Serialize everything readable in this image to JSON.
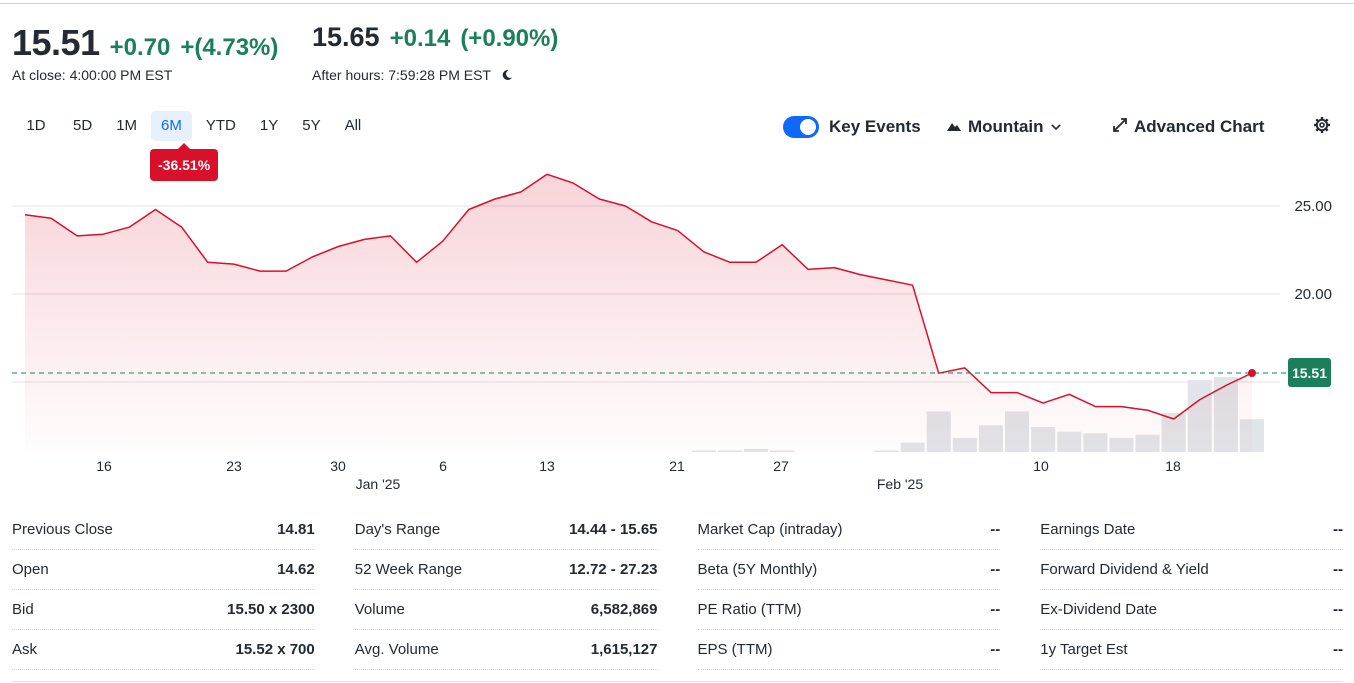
{
  "quote": {
    "close_price": "15.51",
    "close_change": "+0.70",
    "close_change_pct": "+(4.73%)",
    "close_time": "At close: 4:00:00 PM EST",
    "after_price": "15.65",
    "after_change": "+0.14",
    "after_change_pct": "(+0.90%)",
    "after_time": "After hours: 7:59:28 PM EST"
  },
  "ranges": [
    "1D",
    "5D",
    "1M",
    "6M",
    "YTD",
    "1Y",
    "5Y",
    "All"
  ],
  "active_range": "6M",
  "range_badge": "-36.51%",
  "toolbar": {
    "key_events_label": "Key Events",
    "key_events_on": true,
    "chart_type_label": "Mountain",
    "advanced_label": "Advanced Chart"
  },
  "colors": {
    "down": "#d8102a",
    "up": "#1a7f5a",
    "accent": "#0f69ff",
    "last_price_tag": "#1a7f5a",
    "volume": "#e1e4e8"
  },
  "chart_data": {
    "type": "area",
    "y_ticks": [
      "25.00",
      "20.00"
    ],
    "last_price_label": "15.51",
    "x_tick_labels": [
      "16",
      "23",
      "30",
      "6",
      "13",
      "21",
      "27",
      "10",
      "18"
    ],
    "month_labels": [
      "Jan '25",
      "Feb '25"
    ],
    "price_series": [
      24.5,
      24.3,
      23.3,
      23.4,
      23.8,
      24.8,
      23.8,
      21.8,
      21.7,
      21.3,
      21.3,
      22.1,
      22.7,
      23.1,
      23.3,
      21.8,
      23.0,
      24.8,
      25.4,
      25.8,
      26.8,
      26.3,
      25.4,
      25.0,
      24.1,
      23.6,
      22.4,
      21.8,
      21.8,
      22.8,
      21.4,
      21.5,
      21.1,
      20.8,
      20.5,
      15.5,
      15.8,
      14.4,
      14.4,
      13.8,
      14.3,
      13.6,
      13.6,
      13.4,
      12.9,
      14.0,
      14.8,
      15.51
    ],
    "volume_series": [
      0,
      0,
      0,
      0,
      0,
      0,
      0,
      0,
      0,
      0,
      0,
      0,
      0,
      0,
      0,
      0,
      0,
      0,
      0,
      0,
      0,
      0,
      0,
      0,
      0,
      0,
      1,
      1,
      2,
      1,
      0,
      0,
      0,
      1,
      6,
      26,
      9,
      17,
      26,
      16,
      13,
      12,
      9,
      11,
      25,
      46,
      48,
      21
    ],
    "ylim": [
      12.0,
      27.5
    ],
    "grid": true
  },
  "stats": [
    [
      {
        "label": "Previous Close",
        "value": "14.81"
      },
      {
        "label": "Open",
        "value": "14.62"
      },
      {
        "label": "Bid",
        "value": "15.50 x 2300"
      },
      {
        "label": "Ask",
        "value": "15.52 x 700"
      }
    ],
    [
      {
        "label": "Day's Range",
        "value": "14.44 - 15.65"
      },
      {
        "label": "52 Week Range",
        "value": "12.72 - 27.23"
      },
      {
        "label": "Volume",
        "value": "6,582,869"
      },
      {
        "label": "Avg. Volume",
        "value": "1,615,127"
      }
    ],
    [
      {
        "label": "Market Cap (intraday)",
        "value": "--"
      },
      {
        "label": "Beta (5Y Monthly)",
        "value": "--"
      },
      {
        "label": "PE Ratio (TTM)",
        "value": "--"
      },
      {
        "label": "EPS (TTM)",
        "value": "--"
      }
    ],
    [
      {
        "label": "Earnings Date",
        "value": "--"
      },
      {
        "label": "Forward Dividend & Yield",
        "value": "--"
      },
      {
        "label": "Ex-Dividend Date",
        "value": "--"
      },
      {
        "label": "1y Target Est",
        "value": "--"
      }
    ]
  ]
}
